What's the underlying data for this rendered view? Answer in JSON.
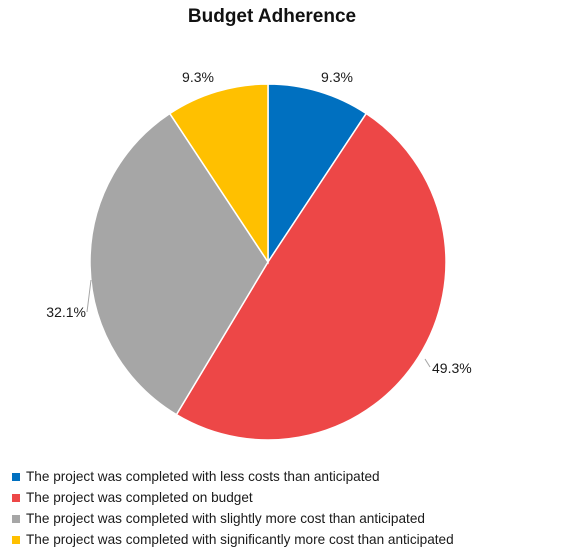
{
  "chart_data": {
    "type": "pie",
    "title": "Budget Adherence",
    "slices": [
      {
        "label": "The project was completed with less costs than anticipated",
        "value": 9.3,
        "display": "9.3%",
        "color": "#0070c0"
      },
      {
        "label": "The project was completed on budget",
        "value": 49.3,
        "display": "49.3%",
        "color": "#ed4747"
      },
      {
        "label": "The project was completed with slightly more cost than anticipated",
        "value": 32.1,
        "display": "32.1%",
        "color": "#a6a6a6"
      },
      {
        "label": "The project was completed with significantly more cost than anticipated",
        "value": 9.3,
        "display": "9.3%",
        "color": "#ffc000"
      }
    ],
    "legend_position": "bottom",
    "start": "12 o'clock",
    "direction": "clockwise"
  }
}
